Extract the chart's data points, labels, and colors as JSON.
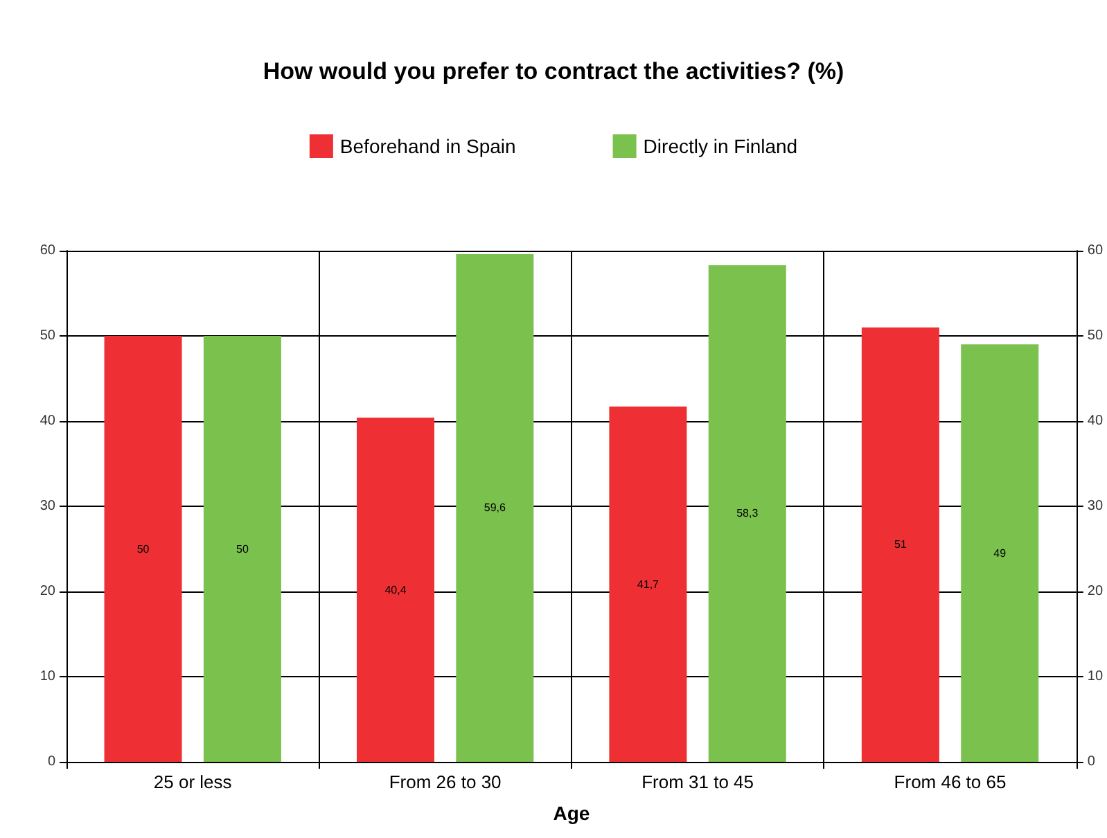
{
  "chart_data": {
    "type": "bar",
    "title": "How would you prefer to contract the activities? (%)",
    "xlabel": "Age",
    "categories": [
      "25 or less",
      "From 26 to 30",
      "From 31 to 45",
      "From 46 to 65"
    ],
    "series": [
      {
        "name": "Beforehand in Spain",
        "color": "#ee3035",
        "values": [
          50,
          40.4,
          41.7,
          51
        ],
        "value_labels": [
          "50",
          "40,4",
          "41,7",
          "51"
        ]
      },
      {
        "name": "Directly in Finland",
        "color": "#7ac14e",
        "values": [
          50,
          59.6,
          58.3,
          49
        ],
        "value_labels": [
          "50",
          "59,6",
          "58,3",
          "49"
        ]
      }
    ],
    "ylim": [
      0,
      60
    ],
    "yticks": [
      0,
      10,
      20,
      30,
      40,
      50,
      60
    ],
    "y2lim": [
      0,
      60
    ],
    "y2ticks": [
      0,
      10,
      20,
      30,
      40,
      50,
      60
    ],
    "grid": true,
    "legend": "top"
  }
}
